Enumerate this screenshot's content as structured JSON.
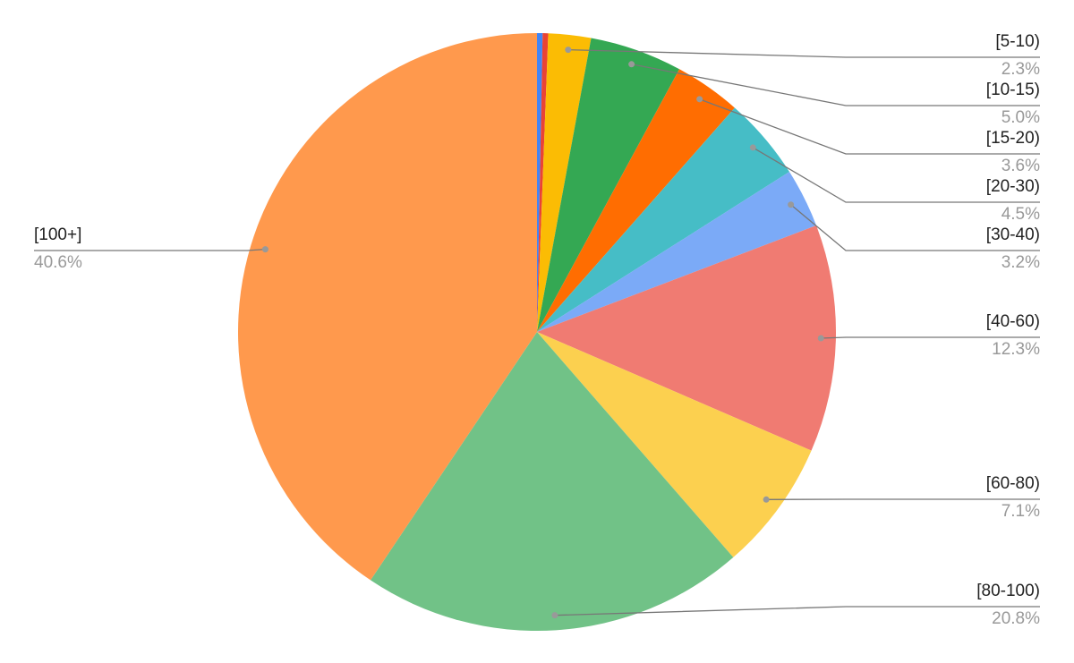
{
  "chart_data": {
    "type": "pie",
    "categories": [
      null,
      null,
      "[5-10)",
      "[10-15)",
      "[15-20)",
      "[20-30)",
      "[30-40)",
      "[40-60)",
      "[60-80)",
      "[80-100)",
      "[100+]"
    ],
    "values": [
      0.3,
      0.3,
      2.3,
      5.0,
      3.6,
      4.5,
      3.2,
      12.3,
      7.1,
      20.8,
      40.6
    ],
    "value_labels": [
      null,
      null,
      "2.3%",
      "5.0%",
      "3.6%",
      "4.5%",
      "3.2%",
      "12.3%",
      "7.1%",
      "20.8%",
      "40.6%"
    ],
    "colors": [
      "#4285f4",
      "#ea4335",
      "#fbbc04",
      "#34a853",
      "#ff6d01",
      "#46bdc6",
      "#7baaf7",
      "#f07b72",
      "#fcd04f",
      "#71c287",
      "#ff994d"
    ]
  }
}
